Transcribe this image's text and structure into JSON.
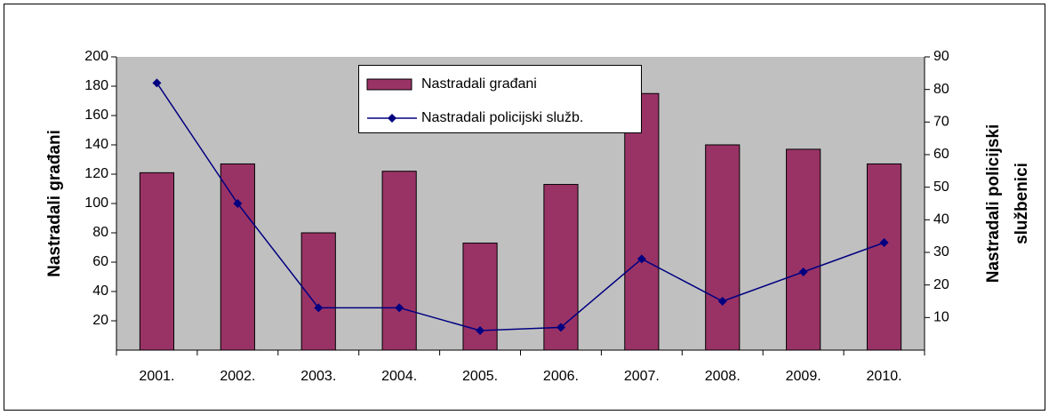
{
  "chart_data": {
    "type": "bar",
    "y_label": "Nastradali građani",
    "y2_label": [
      "Nastradali policijski",
      "službenici"
    ],
    "categories": [
      "2001.",
      "2002.",
      "2003.",
      "2004.",
      "2005.",
      "2006.",
      "2007.",
      "2008.",
      "2009.",
      "2010."
    ],
    "series": [
      {
        "name": "Nastradali građani",
        "type": "bar",
        "color": "#993366",
        "values": [
          121,
          127,
          80,
          122,
          73,
          113,
          175,
          140,
          137,
          127
        ]
      },
      {
        "name": "Nastradali policijski služb.",
        "type": "line",
        "axis": "y2",
        "color": "#000080",
        "values": [
          82,
          45,
          13,
          13,
          6,
          7,
          28,
          15,
          24,
          33
        ]
      }
    ],
    "ylim": [
      0,
      200
    ],
    "yticks": [
      20,
      40,
      60,
      80,
      100,
      120,
      140,
      160,
      180,
      200
    ],
    "y2lim": [
      0,
      90
    ],
    "y2ticks": [
      10,
      20,
      30,
      40,
      50,
      60,
      70,
      80,
      90
    ],
    "plot_background": "#c0c0c0",
    "grid": false,
    "legend": "top"
  }
}
